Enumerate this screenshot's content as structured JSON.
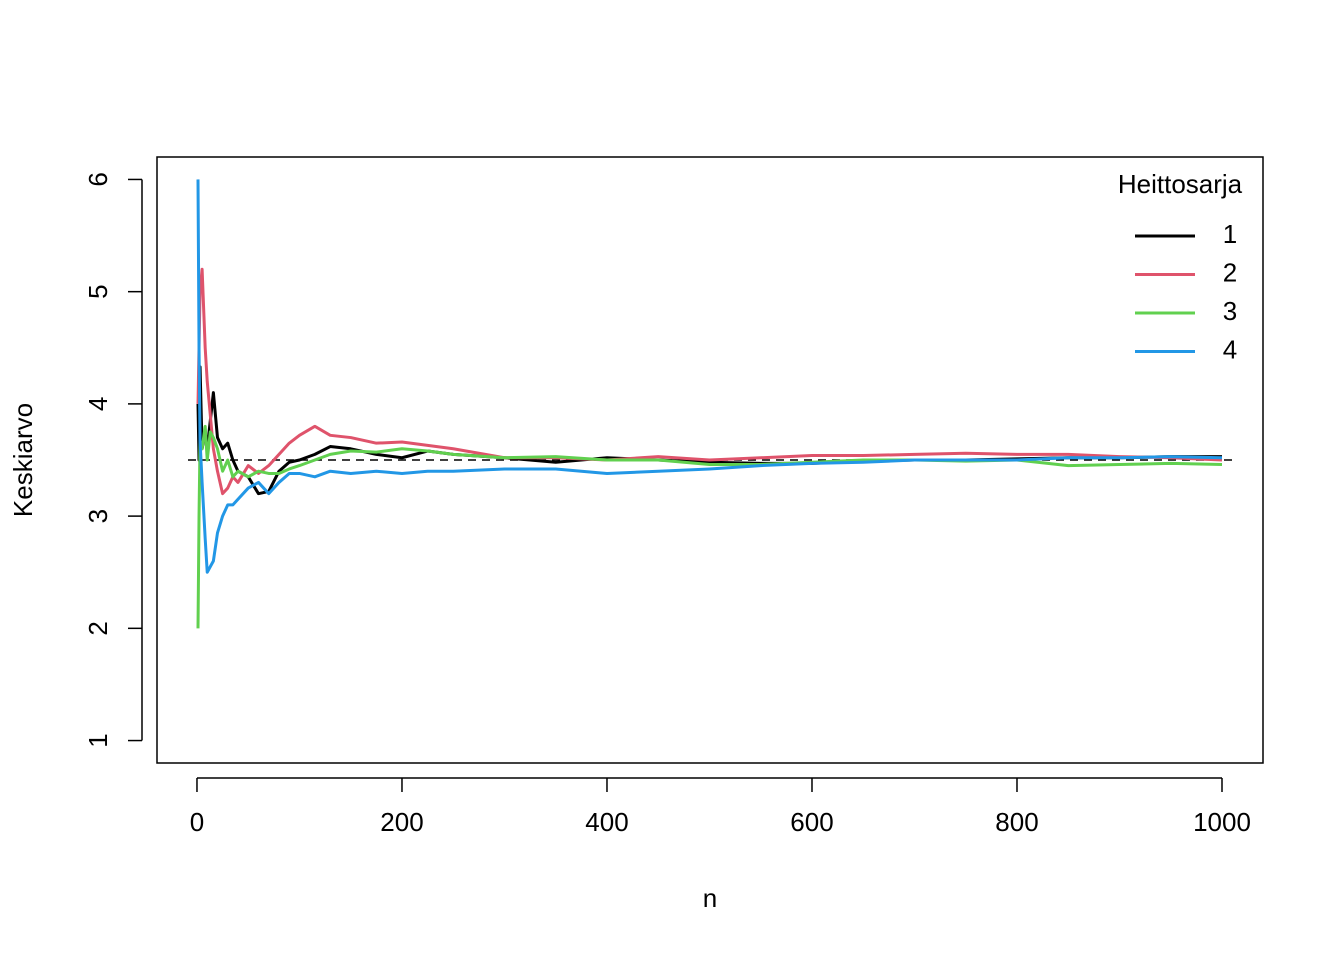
{
  "chart_data": {
    "type": "line",
    "xlabel": "n",
    "ylabel": "Keskiarvo",
    "legend_title": "Heittosarja",
    "legend_position": "top-right",
    "x": [
      1,
      2,
      3,
      5,
      8,
      10,
      13,
      16,
      20,
      25,
      30,
      35,
      40,
      50,
      60,
      70,
      80,
      90,
      100,
      115,
      130,
      150,
      175,
      200,
      225,
      250,
      300,
      350,
      400,
      450,
      500,
      550,
      600,
      650,
      700,
      750,
      800,
      850,
      900,
      950,
      1000
    ],
    "series": [
      {
        "name": "1",
        "color": "#000000",
        "values": [
          4,
          3.5,
          4.33,
          3.6,
          3.75,
          3.6,
          3.85,
          4.1,
          3.7,
          3.6,
          3.65,
          3.5,
          3.4,
          3.35,
          3.2,
          3.22,
          3.4,
          3.48,
          3.5,
          3.55,
          3.62,
          3.6,
          3.55,
          3.52,
          3.58,
          3.55,
          3.52,
          3.48,
          3.52,
          3.5,
          3.48,
          3.47,
          3.47,
          3.49,
          3.5,
          3.5,
          3.51,
          3.52,
          3.52,
          3.53,
          3.53
        ]
      },
      {
        "name": "2",
        "color": "#DF536B",
        "values": [
          4,
          4.5,
          5,
          5.2,
          4.5,
          4.2,
          3.9,
          3.6,
          3.4,
          3.2,
          3.25,
          3.35,
          3.3,
          3.45,
          3.38,
          3.45,
          3.55,
          3.65,
          3.72,
          3.8,
          3.72,
          3.7,
          3.65,
          3.66,
          3.63,
          3.6,
          3.52,
          3.52,
          3.5,
          3.53,
          3.5,
          3.52,
          3.54,
          3.54,
          3.55,
          3.56,
          3.55,
          3.55,
          3.53,
          3.52,
          3.5
        ]
      },
      {
        "name": "3",
        "color": "#61D04F",
        "values": [
          2,
          3,
          3.67,
          3.6,
          3.8,
          3.5,
          3.75,
          3.7,
          3.6,
          3.4,
          3.5,
          3.35,
          3.4,
          3.35,
          3.4,
          3.38,
          3.38,
          3.42,
          3.45,
          3.5,
          3.55,
          3.58,
          3.57,
          3.6,
          3.58,
          3.55,
          3.52,
          3.53,
          3.5,
          3.5,
          3.46,
          3.46,
          3.48,
          3.5,
          3.5,
          3.49,
          3.5,
          3.45,
          3.46,
          3.47,
          3.46
        ]
      },
      {
        "name": "4",
        "color": "#2297E6",
        "values": [
          6,
          4.5,
          3.67,
          3.3,
          2.8,
          2.5,
          2.55,
          2.6,
          2.85,
          3.0,
          3.1,
          3.1,
          3.15,
          3.25,
          3.3,
          3.2,
          3.3,
          3.38,
          3.38,
          3.35,
          3.4,
          3.38,
          3.4,
          3.38,
          3.4,
          3.4,
          3.42,
          3.42,
          3.38,
          3.4,
          3.42,
          3.45,
          3.47,
          3.48,
          3.5,
          3.5,
          3.5,
          3.52,
          3.52,
          3.53,
          3.52
        ]
      }
    ],
    "hline": 3.5,
    "xlim": [
      -39,
      1040
    ],
    "xticks": [
      0,
      200,
      400,
      600,
      800,
      1000
    ],
    "ylim": [
      0.8,
      6.2
    ],
    "yticks": [
      1,
      2,
      3,
      4,
      5,
      6
    ]
  }
}
